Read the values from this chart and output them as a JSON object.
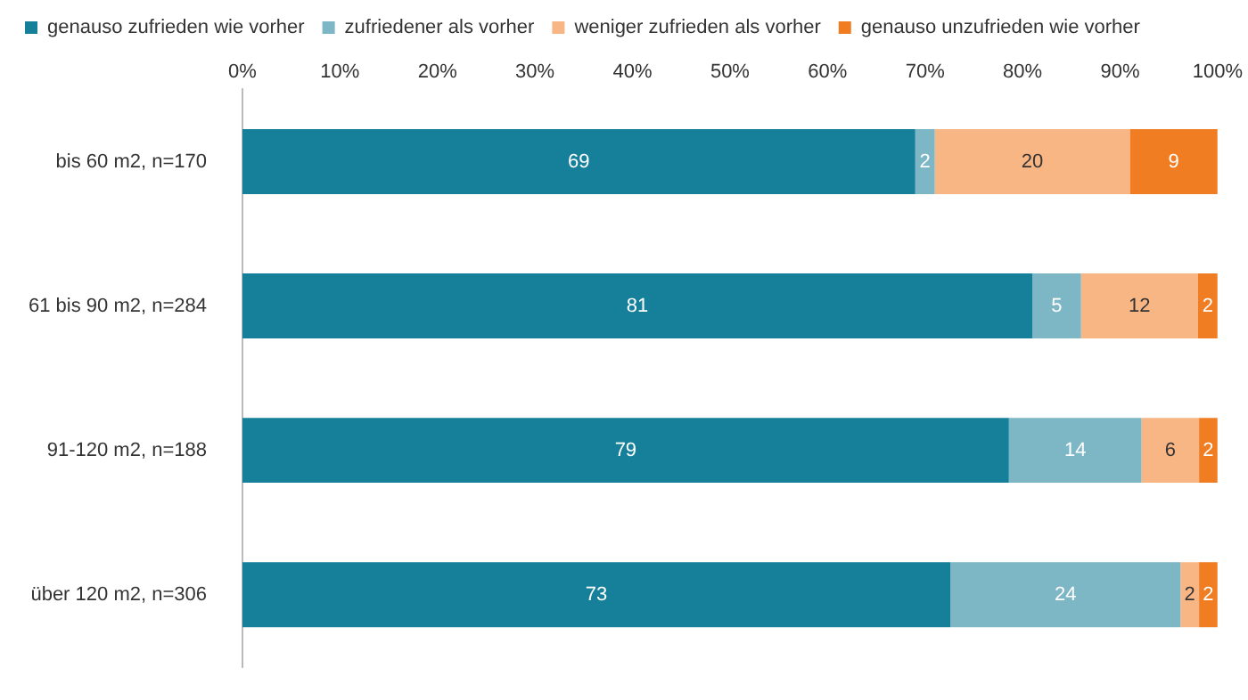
{
  "chart_data": {
    "type": "bar",
    "orientation": "horizontal",
    "stacked": true,
    "legend": "top left",
    "grid": false,
    "categories": [
      "bis 60 m2, n=170",
      "61 bis 90 m2, n=284",
      "91-120 m2, n=188",
      "über 120 m2, n=306"
    ],
    "xlim": [
      0,
      100
    ],
    "xticks": [
      {
        "value": 0,
        "label": "0%"
      },
      {
        "value": 10,
        "label": "10%"
      },
      {
        "value": 20,
        "label": "20%"
      },
      {
        "value": 30,
        "label": "30%"
      },
      {
        "value": 40,
        "label": "40%"
      },
      {
        "value": 50,
        "label": "50%"
      },
      {
        "value": 60,
        "label": "60%"
      },
      {
        "value": 70,
        "label": "70%"
      },
      {
        "value": 80,
        "label": "80%"
      },
      {
        "value": 90,
        "label": "90%"
      },
      {
        "value": 100,
        "label": "100%"
      }
    ],
    "series": [
      {
        "name": "genauso zufrieden wie vorher",
        "color": "#16809b",
        "values": [
          69,
          81,
          78.6,
          72.6
        ],
        "value_labels": [
          "69",
          "81",
          "79",
          "73"
        ]
      },
      {
        "name": "zufriedener als vorher",
        "color": "#7db6c5",
        "values": [
          2,
          5,
          13.6,
          23.6
        ],
        "value_labels": [
          "2",
          "5",
          "14",
          "24"
        ]
      },
      {
        "name": "weniger zufrieden als vorher",
        "color": "#f9b685",
        "values": [
          20,
          12,
          5.9,
          1.9
        ],
        "value_labels": [
          "20",
          "12",
          "6",
          "2"
        ]
      },
      {
        "name": "genauso unzufrieden wie vorher",
        "color": "#f07d22",
        "values": [
          9,
          2,
          1.9,
          1.9
        ],
        "value_labels": [
          "9",
          "2",
          "2",
          "2"
        ]
      }
    ]
  }
}
